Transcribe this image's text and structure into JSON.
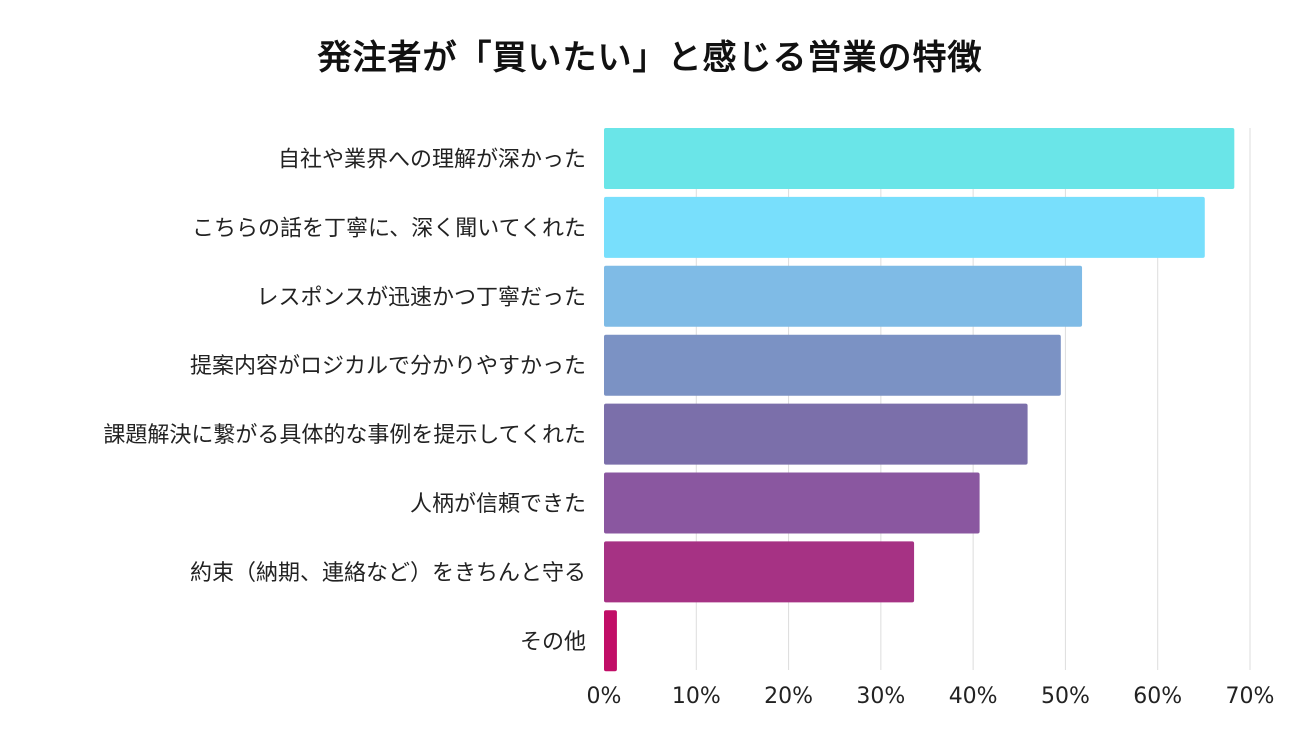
{
  "chart_data": {
    "type": "bar",
    "orientation": "horizontal",
    "title": "発注者が「買いたい」と感じる営業の特徴",
    "xlabel": "",
    "ylabel": "",
    "categories": [
      "自社や業界への理解が深かった",
      "こちらの話を丁寧に、深く聞いてくれた",
      "レスポンスが迅速かつ丁寧だった",
      "提案内容がロジカルで分かりやすかった",
      "課題解決に繋がる具体的な事例を提示してくれた",
      "人柄が信頼できた",
      "約束（納期、連絡など）をきちんと守る",
      "その他"
    ],
    "values": [
      68.3,
      65.1,
      51.8,
      49.5,
      45.9,
      40.7,
      33.6,
      1.4
    ],
    "unit": "%",
    "xlim": [
      0,
      70
    ],
    "ticks": [
      0,
      10,
      20,
      30,
      40,
      50,
      60,
      70
    ],
    "tick_labels": [
      "0%",
      "10%",
      "20%",
      "30%",
      "40%",
      "50%",
      "60%",
      "70%"
    ],
    "grid": true,
    "legend": "none",
    "colors": [
      "#6ae5e8",
      "#78dffc",
      "#7fbbe6",
      "#7b92c4",
      "#7b6faa",
      "#8a57a0",
      "#a63284",
      "#c10e67"
    ]
  }
}
